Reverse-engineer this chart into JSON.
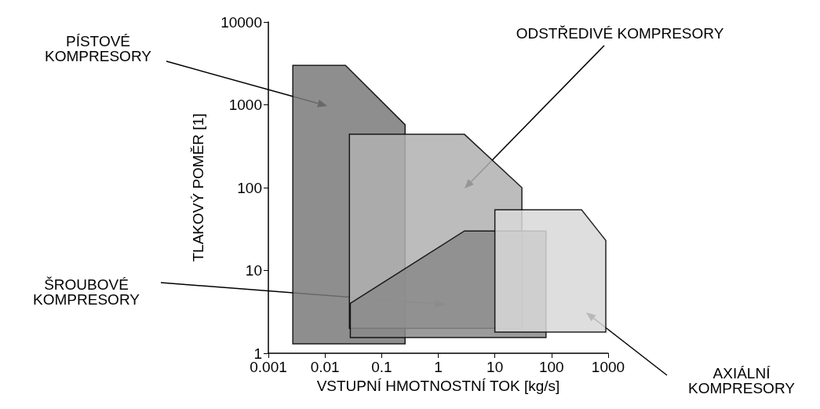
{
  "chart_data": {
    "type": "area",
    "xlabel": "VSTUPNÍ HMOTNOSTNÍ TOK [kg/s]",
    "ylabel": "TLAKOVÝ POMĚR [1]",
    "log": "xy",
    "grid": false,
    "xlim": [
      0.001,
      1000
    ],
    "xticks": [
      0.001,
      0.01,
      0.1,
      1,
      10,
      100,
      1000
    ],
    "ylim": [
      1,
      10000
    ],
    "yticks": [
      1,
      10,
      100,
      1000,
      10000
    ],
    "series": [
      {
        "color": "#7a7a7a",
        "x": [
          0.0027,
          0.0027,
          0.023,
          0.26,
          0.26
        ],
        "values": [
          1.3,
          3000,
          3000,
          575,
          1.3
        ]
      },
      {
        "color": "#b0b0b0",
        "x": [
          0.027,
          0.027,
          2.9,
          30,
          30
        ],
        "values": [
          2,
          440,
          440,
          100,
          2
        ]
      },
      {
        "color": "#8a8a8a",
        "x": [
          0.028,
          0.028,
          2.9,
          80,
          80
        ],
        "values": [
          1.55,
          4,
          30,
          30,
          1.55
        ]
      },
      {
        "color": "#d8d8d8",
        "x": [
          10,
          10,
          340,
          910,
          910
        ],
        "values": [
          1.8,
          54,
          54,
          23,
          1.8
        ]
      }
    ],
    "annotations": [
      "PÍSTOVÉ\nKOMPRESORY",
      "ODSTŘEDIVÉ KOMPRESORY",
      "ŠROUBOVÉ\nKOMPRESORY",
      "AXIÁLNÍ\nKOMPRESORY"
    ]
  }
}
